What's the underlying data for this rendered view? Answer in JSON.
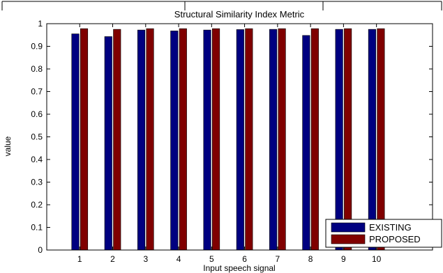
{
  "chart_data": {
    "type": "bar",
    "title": "Structural Similarity Index Metric",
    "xlabel": "Input speech signal",
    "ylabel": "value",
    "categories": [
      "1",
      "2",
      "3",
      "4",
      "5",
      "6",
      "7",
      "8",
      "9",
      "10"
    ],
    "series": [
      {
        "name": "EXISTING",
        "color": "#000080",
        "values": [
          0.955,
          0.943,
          0.972,
          0.968,
          0.972,
          0.974,
          0.975,
          0.948,
          0.975,
          0.975
        ]
      },
      {
        "name": "PROPOSED",
        "color": "#800000",
        "values": [
          0.978,
          0.975,
          0.978,
          0.978,
          0.978,
          0.978,
          0.978,
          0.978,
          0.978,
          0.978
        ]
      }
    ],
    "ylim": [
      0,
      1
    ],
    "yticks": [
      "0",
      "0.1",
      "0.2",
      "0.3",
      "0.4",
      "0.5",
      "0.6",
      "0.7",
      "0.8",
      "0.9",
      "1"
    ],
    "legend_position": "bottom-right",
    "grid": false
  }
}
